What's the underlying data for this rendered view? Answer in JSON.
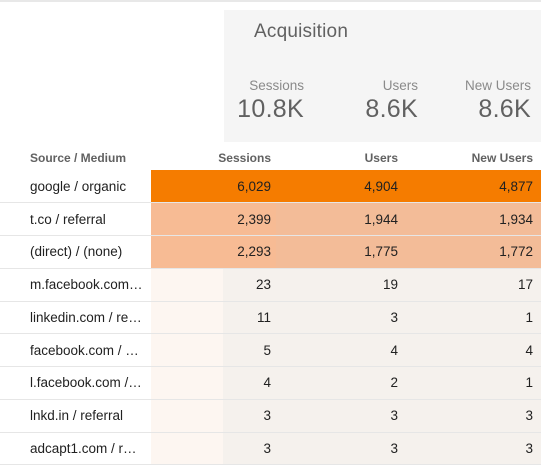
{
  "section": {
    "title": "Acquisition",
    "summary": [
      {
        "label": "Sessions",
        "value": "10.8K"
      },
      {
        "label": "Users",
        "value": "8.6K"
      },
      {
        "label": "New Users",
        "value": "8.6K"
      }
    ]
  },
  "table": {
    "headers": {
      "source": "Source / Medium",
      "sessions": "Sessions",
      "users": "Users",
      "new_users": "New Users"
    },
    "rows": [
      {
        "source": "google / organic",
        "sessions": "6,029",
        "users": "4,904",
        "new_users": "4,877"
      },
      {
        "source": "t.co / referral",
        "sessions": "2,399",
        "users": "1,944",
        "new_users": "1,934"
      },
      {
        "source": "(direct) / (none)",
        "sessions": "2,293",
        "users": "1,775",
        "new_users": "1,772"
      },
      {
        "source": "m.facebook.com…",
        "sessions": "23",
        "users": "19",
        "new_users": "17"
      },
      {
        "source": "linkedin.com / re…",
        "sessions": "11",
        "users": "3",
        "new_users": "1"
      },
      {
        "source": "facebook.com / …",
        "sessions": "5",
        "users": "4",
        "new_users": "4"
      },
      {
        "source": "l.facebook.com /…",
        "sessions": "4",
        "users": "2",
        "new_users": "1"
      },
      {
        "source": "lnkd.in / referral",
        "sessions": "3",
        "users": "3",
        "new_users": "3"
      },
      {
        "source": "adcapt1.com / r…",
        "sessions": "3",
        "users": "3",
        "new_users": "3"
      }
    ]
  },
  "colors": {
    "heat_high": "#f57c00",
    "heat_mid": "#f7bb94",
    "panel_bg": "#f5f5f5"
  }
}
